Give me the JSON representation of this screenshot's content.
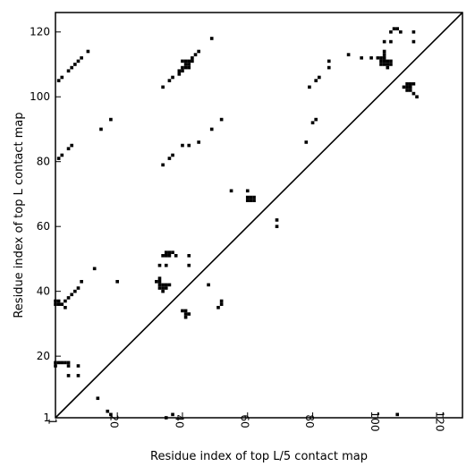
{
  "chart_data": {
    "type": "scatter",
    "title": "",
    "xlabel": "Residue index of top L/5 contact map",
    "ylabel": "Residue index of top L contact map",
    "xlim": [
      1,
      126
    ],
    "ylim": [
      1,
      126
    ],
    "x_ticks": [
      1,
      20,
      40,
      60,
      80,
      100,
      120
    ],
    "y_ticks": [
      1,
      20,
      40,
      60,
      80,
      100,
      120
    ],
    "x_tick_labels": [
      "1",
      "20",
      "40",
      "60",
      "80",
      "100",
      "120"
    ],
    "y_tick_labels": [
      "1",
      "20",
      "40",
      "60",
      "80",
      "100",
      "120"
    ],
    "grid": false,
    "legend": false,
    "diagonal_line": true,
    "marker_color": "#000000",
    "series": [
      {
        "points": [
          [
            1,
            36
          ],
          [
            1,
            37
          ],
          [
            2,
            36
          ],
          [
            2,
            37
          ],
          [
            3,
            36
          ],
          [
            4,
            37
          ],
          [
            4,
            35
          ],
          [
            5,
            38
          ],
          [
            6,
            39
          ],
          [
            7,
            40
          ],
          [
            8,
            41
          ],
          [
            9,
            43
          ],
          [
            13,
            47
          ],
          [
            1,
            17
          ],
          [
            1,
            18
          ],
          [
            2,
            18
          ],
          [
            3,
            18
          ],
          [
            4,
            18
          ],
          [
            5,
            17
          ],
          [
            5,
            18
          ],
          [
            5,
            14
          ],
          [
            8,
            17
          ],
          [
            8,
            14
          ],
          [
            14,
            7
          ],
          [
            17,
            3
          ],
          [
            18,
            2
          ],
          [
            2,
            81
          ],
          [
            3,
            82
          ],
          [
            5,
            84
          ],
          [
            6,
            85
          ],
          [
            15,
            90
          ],
          [
            18,
            93
          ],
          [
            2,
            105
          ],
          [
            3,
            106
          ],
          [
            5,
            108
          ],
          [
            6,
            109
          ],
          [
            7,
            110
          ],
          [
            8,
            111
          ],
          [
            9,
            112
          ],
          [
            11,
            114
          ],
          [
            20,
            43
          ],
          [
            32,
            43
          ],
          [
            33,
            41
          ],
          [
            33,
            42
          ],
          [
            33,
            43
          ],
          [
            33,
            44
          ],
          [
            34,
            41
          ],
          [
            34,
            42
          ],
          [
            34,
            40
          ],
          [
            35,
            41
          ],
          [
            35,
            42
          ],
          [
            36,
            42
          ],
          [
            33,
            48
          ],
          [
            35,
            48
          ],
          [
            34,
            51
          ],
          [
            35,
            52
          ],
          [
            36,
            52
          ],
          [
            37,
            52
          ],
          [
            38,
            51
          ],
          [
            36,
            51
          ],
          [
            35,
            51
          ],
          [
            42,
            51
          ],
          [
            42,
            48
          ],
          [
            48,
            42
          ],
          [
            40,
            34
          ],
          [
            41,
            34
          ],
          [
            41,
            32
          ],
          [
            42,
            33
          ],
          [
            41,
            33
          ],
          [
            34,
            79
          ],
          [
            36,
            81
          ],
          [
            37,
            82
          ],
          [
            40,
            85
          ],
          [
            42,
            85
          ],
          [
            45,
            86
          ],
          [
            49,
            90
          ],
          [
            52,
            93
          ],
          [
            34,
            103
          ],
          [
            36,
            105
          ],
          [
            37,
            106
          ],
          [
            39,
            107
          ],
          [
            39,
            108
          ],
          [
            40,
            108
          ],
          [
            40,
            109
          ],
          [
            41,
            109
          ],
          [
            41,
            110
          ],
          [
            42,
            109
          ],
          [
            42,
            111
          ],
          [
            40,
            111
          ],
          [
            41,
            111
          ],
          [
            42,
            110
          ],
          [
            43,
            111
          ],
          [
            43,
            112
          ],
          [
            44,
            113
          ],
          [
            45,
            114
          ],
          [
            49,
            118
          ],
          [
            51,
            35
          ],
          [
            52,
            36
          ],
          [
            52,
            37
          ],
          [
            55,
            71
          ],
          [
            60,
            71
          ],
          [
            60,
            69
          ],
          [
            60,
            68
          ],
          [
            61,
            68
          ],
          [
            61,
            69
          ],
          [
            62,
            68
          ],
          [
            62,
            69
          ],
          [
            69,
            60
          ],
          [
            69,
            62
          ],
          [
            78,
            86
          ],
          [
            80,
            92
          ],
          [
            81,
            93
          ],
          [
            79,
            103
          ],
          [
            81,
            105
          ],
          [
            82,
            106
          ],
          [
            85,
            109
          ],
          [
            85,
            111
          ],
          [
            91,
            113
          ],
          [
            95,
            112
          ],
          [
            98,
            112
          ],
          [
            100,
            112
          ],
          [
            101,
            112
          ],
          [
            101,
            111
          ],
          [
            101,
            110
          ],
          [
            102,
            110
          ],
          [
            102,
            111
          ],
          [
            102,
            112
          ],
          [
            102,
            113
          ],
          [
            102,
            114
          ],
          [
            103,
            111
          ],
          [
            103,
            110
          ],
          [
            103,
            109
          ],
          [
            104,
            110
          ],
          [
            104,
            111
          ],
          [
            102,
            117
          ],
          [
            104,
            117
          ],
          [
            104,
            120
          ],
          [
            105,
            121
          ],
          [
            106,
            121
          ],
          [
            107,
            120
          ],
          [
            111,
            120
          ],
          [
            111,
            117
          ],
          [
            108,
            103
          ],
          [
            109,
            102
          ],
          [
            109,
            103
          ],
          [
            109,
            104
          ],
          [
            110,
            102
          ],
          [
            110,
            103
          ],
          [
            110,
            104
          ],
          [
            111,
            101
          ],
          [
            111,
            104
          ],
          [
            112,
            100
          ],
          [
            106,
            2
          ],
          [
            35,
            1
          ],
          [
            37,
            2
          ]
        ]
      }
    ]
  }
}
